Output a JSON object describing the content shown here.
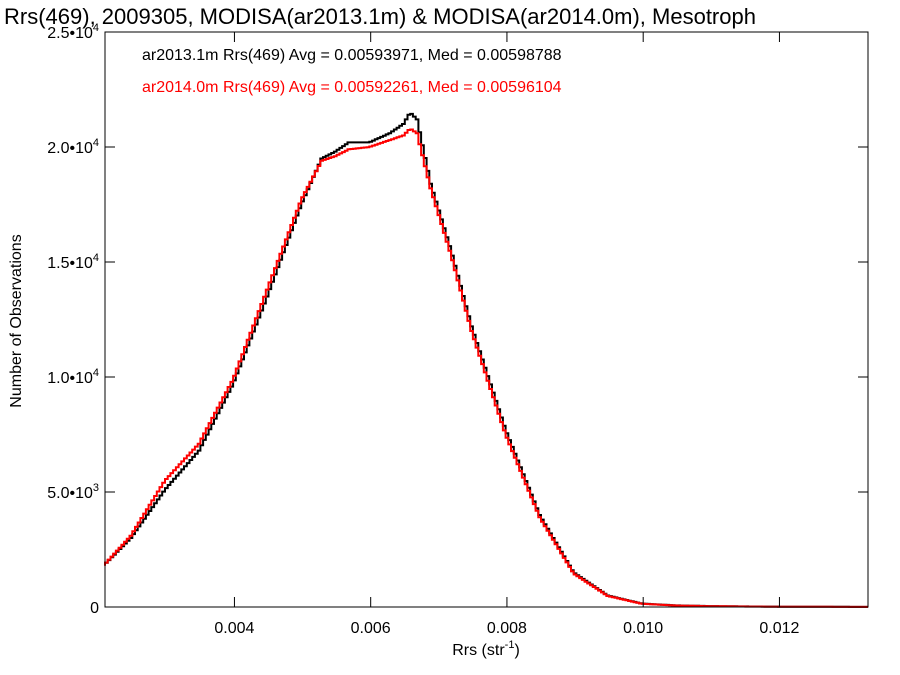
{
  "chart_data": {
    "type": "line",
    "step": true,
    "title": "Rrs(469), 2009305, MODISA(ar2013.1m) & MODISA(ar2014.0m), Mesotroph",
    "xlabel": {
      "main": "Rrs (str",
      "sup": "-1",
      "close": ")"
    },
    "ylabel": "Number of Observations",
    "xlim": [
      0.0021,
      0.0133
    ],
    "ylim": [
      0,
      25000
    ],
    "x_ticks": [
      {
        "value": 0.004,
        "label": "0.004"
      },
      {
        "value": 0.006,
        "label": "0.006"
      },
      {
        "value": 0.008,
        "label": "0.008"
      },
      {
        "value": 0.01,
        "label": "0.010"
      },
      {
        "value": 0.012,
        "label": "0.012"
      }
    ],
    "y_ticks": [
      {
        "value": 0,
        "mantissa": "0",
        "exp": ""
      },
      {
        "value": 5000,
        "mantissa": "5.0•10",
        "exp": "3"
      },
      {
        "value": 10000,
        "mantissa": "1.0•10",
        "exp": "4"
      },
      {
        "value": 15000,
        "mantissa": "1.5•10",
        "exp": "4"
      },
      {
        "value": 20000,
        "mantissa": "2.0•10",
        "exp": "4"
      },
      {
        "value": 25000,
        "mantissa": "2.5•10",
        "exp": "4"
      }
    ],
    "legend_position": "top-left",
    "series": [
      {
        "name": "ar2013.1m Rrs(469) Avg = 0.00593971, Med = 0.00598788",
        "color": "#000000",
        "x": [
          0.0021,
          0.0025,
          0.003,
          0.0035,
          0.004,
          0.0045,
          0.005,
          0.0053,
          0.0055,
          0.0057,
          0.006,
          0.0063,
          0.0065,
          0.0066,
          0.0067,
          0.0069,
          0.0072,
          0.0075,
          0.008,
          0.0085,
          0.009,
          0.0095,
          0.01,
          0.0105,
          0.011,
          0.0115,
          0.012,
          0.0125,
          0.0133
        ],
        "y": [
          1800,
          3000,
          5100,
          6800,
          9700,
          13500,
          17500,
          19500,
          19800,
          20200,
          20200,
          20600,
          21000,
          21500,
          21200,
          18400,
          15500,
          12200,
          7700,
          4000,
          1500,
          500,
          150,
          70,
          40,
          25,
          15,
          10,
          5
        ]
      },
      {
        "name": "ar2014.0m Rrs(469) Avg = 0.00592261, Med = 0.00596104",
        "color": "#ff0000",
        "x": [
          0.0021,
          0.0025,
          0.003,
          0.0035,
          0.004,
          0.0045,
          0.005,
          0.0053,
          0.0055,
          0.0057,
          0.006,
          0.0063,
          0.0065,
          0.0066,
          0.0067,
          0.0069,
          0.0072,
          0.0075,
          0.008,
          0.0085,
          0.009,
          0.0095,
          0.01,
          0.0105,
          0.011,
          0.0115,
          0.012,
          0.0125,
          0.0133
        ],
        "y": [
          1800,
          3100,
          5500,
          7100,
          9900,
          13800,
          17700,
          19400,
          19600,
          19900,
          20000,
          20300,
          20500,
          20800,
          20600,
          18200,
          15300,
          12000,
          7500,
          3900,
          1450,
          480,
          140,
          65,
          35,
          20,
          12,
          8,
          4
        ]
      }
    ]
  }
}
